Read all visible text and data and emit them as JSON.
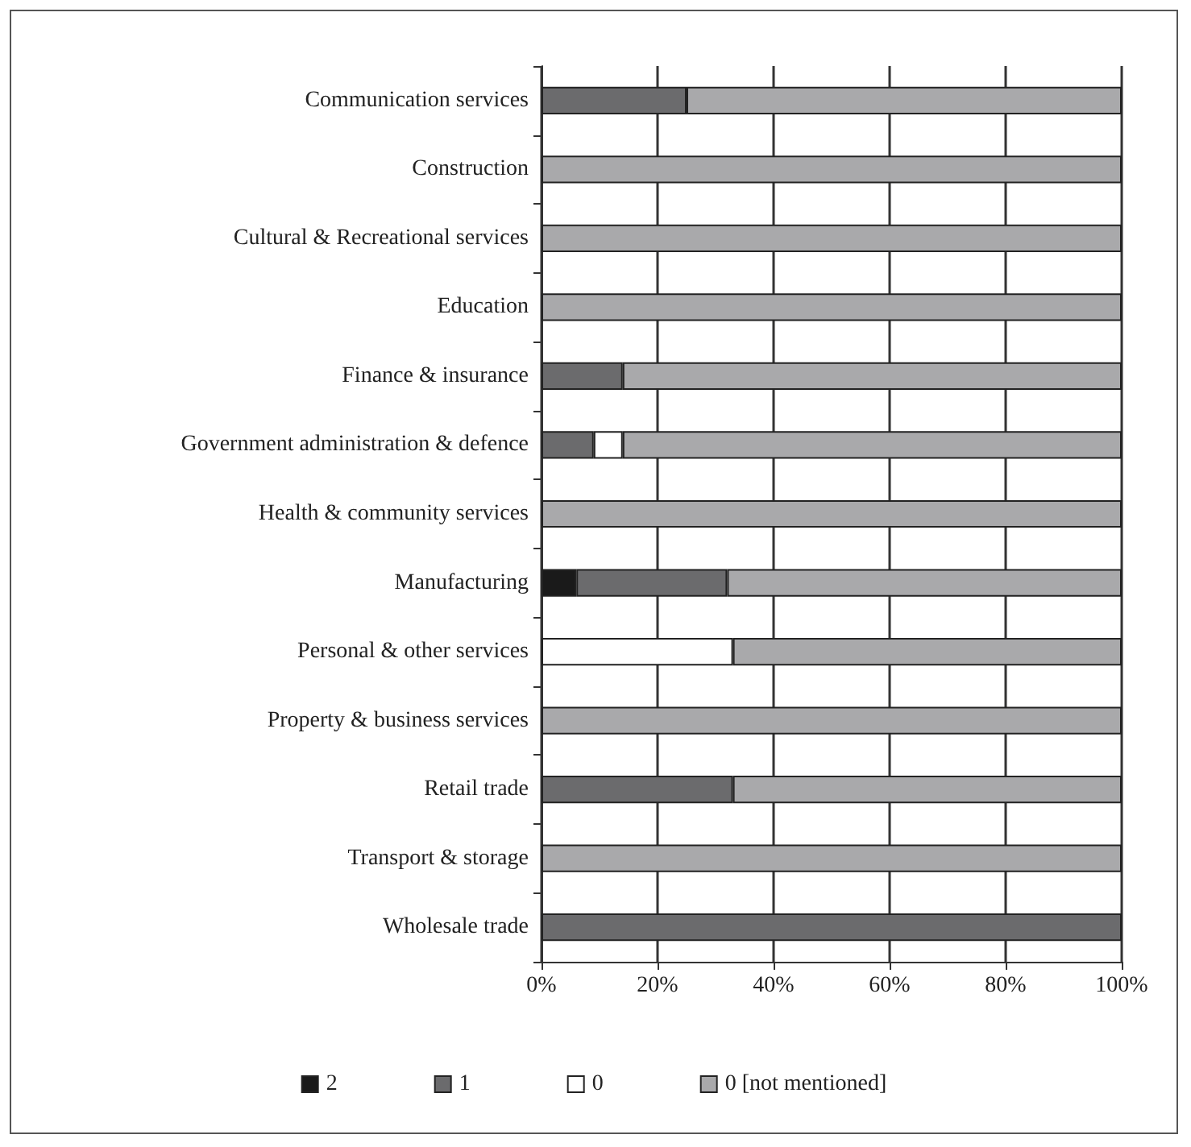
{
  "chart_data": {
    "type": "bar",
    "orientation": "horizontal",
    "stacked": true,
    "categories": [
      "Communication services",
      "Construction",
      "Cultural & Recreational services",
      "Education",
      "Finance & insurance",
      "Government administration & defence",
      "Health & community services",
      "Manufacturing",
      "Personal & other services",
      "Property & business services",
      "Retail trade",
      "Transport & storage",
      "Wholesale trade"
    ],
    "series": [
      {
        "name": "2",
        "color": "#1a1a1a",
        "values": [
          0,
          0,
          0,
          0,
          0,
          0,
          0,
          6,
          0,
          0,
          0,
          0,
          0
        ]
      },
      {
        "name": "1",
        "color": "#6b6b6d",
        "values": [
          25,
          0,
          0,
          0,
          14,
          9,
          0,
          26,
          0,
          0,
          33,
          0,
          100
        ]
      },
      {
        "name": "0",
        "color": "#ffffff",
        "values": [
          0,
          0,
          0,
          0,
          0,
          5,
          0,
          0,
          33,
          0,
          0,
          0,
          0
        ]
      },
      {
        "name": "0 [not mentioned]",
        "color": "#a9a9ab",
        "values": [
          75,
          100,
          100,
          100,
          86,
          86,
          100,
          68,
          67,
          100,
          67,
          100,
          0
        ]
      }
    ],
    "xlim": [
      0,
      100
    ],
    "xticks": [
      {
        "value": 0,
        "label": "0%"
      },
      {
        "value": 20,
        "label": "20%"
      },
      {
        "value": 40,
        "label": "40%"
      },
      {
        "value": 60,
        "label": "60%"
      },
      {
        "value": 80,
        "label": "80%"
      },
      {
        "value": 100,
        "label": "100%"
      }
    ],
    "grid": "x",
    "legend": "bottom"
  }
}
